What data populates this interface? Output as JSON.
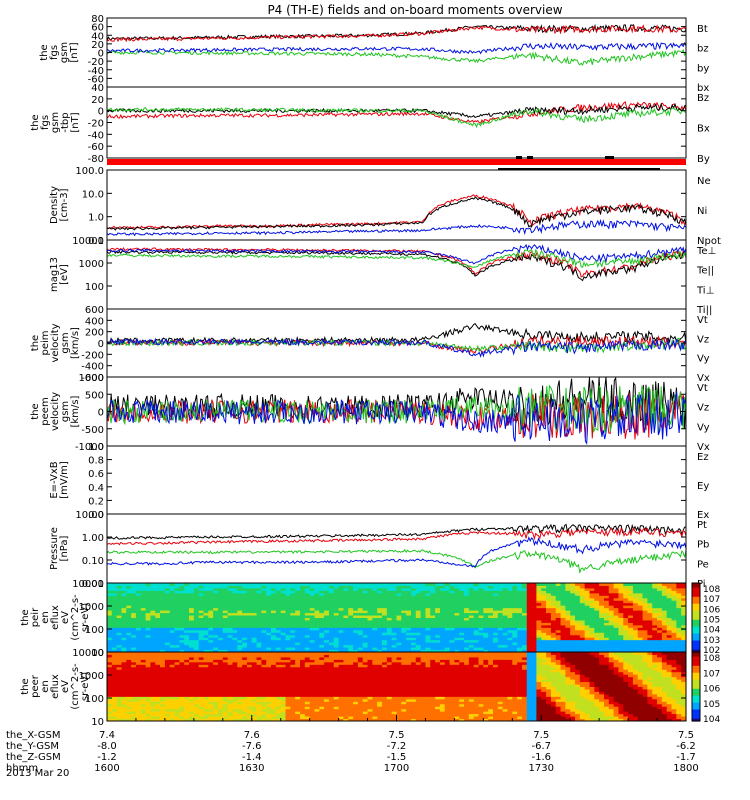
{
  "title": "P4 (TH-E) fields and on-board moments overview",
  "date": "2013 Mar 20",
  "colors": {
    "black": "#000000",
    "red": "#e8000b",
    "green": "#21c421",
    "blue": "#0010e0",
    "bar": "#ff0000"
  },
  "chart_data": [
    {
      "type": "line",
      "ylabel": [
        "the",
        "fgs",
        "gsm",
        "[nT]"
      ],
      "ylim": [
        -80,
        80
      ],
      "ylog": false,
      "yticks": [
        "80",
        "60",
        "40",
        "20",
        "0",
        "-20",
        "-40",
        "-60"
      ],
      "series": [
        {
          "name": "Bt",
          "color": "black",
          "base": [
            32,
            33,
            35,
            37,
            38,
            40,
            45,
            60,
            55,
            55,
            57,
            55
          ],
          "segments": [
            [
              0,
              0,
              0.62,
              30,
              32
            ],
            [
              0.62,
              0.7,
              35,
              60
            ],
            [
              0.7,
              0.85,
              50,
              58
            ],
            [
              0.85,
              1,
              56,
              50
            ]
          ]
        },
        {
          "name": "bz",
          "color": "red",
          "base": [
            30,
            31,
            33,
            35,
            37,
            39,
            44,
            58,
            52,
            54,
            56,
            52
          ]
        },
        {
          "name": "by",
          "color": "green",
          "base": [
            0,
            0,
            -1,
            -2,
            -3,
            -4,
            -10,
            -20,
            -5,
            -25,
            -10,
            0
          ]
        },
        {
          "name": "bx",
          "color": "blue",
          "base": [
            4,
            5,
            6,
            7,
            8,
            9,
            8,
            0,
            15,
            12,
            14,
            15
          ]
        }
      ]
    },
    {
      "type": "line",
      "ylabel": [
        "the",
        "fgs",
        "gsm",
        "-tbp",
        "[nT]"
      ],
      "ylim": [
        -80,
        40
      ],
      "ylog": false,
      "yticks": [
        "40",
        "20",
        "0",
        "-20",
        "-40",
        "-60",
        "-80"
      ],
      "series": [
        {
          "name": "Bz",
          "color": "red",
          "base": [
            -10,
            -9,
            -8,
            -8,
            -7,
            -6,
            -5,
            -20,
            -5,
            5,
            10,
            5
          ]
        },
        {
          "name": "Bx",
          "color": "black",
          "base": [
            0,
            0,
            0,
            0,
            0,
            0,
            0,
            -10,
            0,
            0,
            5,
            5
          ]
        },
        {
          "name": "By",
          "color": "green",
          "base": [
            2,
            2,
            2,
            1,
            1,
            0,
            0,
            -25,
            0,
            -15,
            -5,
            0
          ]
        }
      ]
    },
    {
      "type": "line",
      "ylabel": [
        "Density",
        "[cm-3]"
      ],
      "ylim": [
        0.1,
        100
      ],
      "ylog": true,
      "yticks": [
        "100.0",
        "10.0",
        "1.0",
        "0.1"
      ],
      "series": [
        {
          "name": "Ne",
          "color": "red",
          "base": [
            0.35,
            0.35,
            0.4,
            0.4,
            0.45,
            0.5,
            0.6,
            8,
            0.5,
            2,
            3,
            0.6
          ]
        },
        {
          "name": "Ni",
          "color": "black",
          "base": [
            0.3,
            0.32,
            0.35,
            0.38,
            0.4,
            0.45,
            0.55,
            6,
            0.45,
            1.6,
            2.5,
            0.55
          ]
        },
        {
          "name": "Npot",
          "color": "blue",
          "base": [
            0.18,
            0.18,
            0.2,
            0.2,
            0.22,
            0.24,
            0.26,
            0.4,
            0.3,
            0.5,
            0.5,
            0.3
          ]
        }
      ]
    },
    {
      "type": "line",
      "ylabel": [
        "mag13",
        "[eV]"
      ],
      "ylim": [
        10,
        10000
      ],
      "ylog": true,
      "yticks": [
        "10000",
        "1000",
        "100"
      ],
      "series": [
        {
          "name": "Te⊥",
          "color": "red",
          "base": [
            4000,
            4000,
            3800,
            3800,
            3600,
            3500,
            3200,
            300,
            2500,
            300,
            700,
            2800
          ]
        },
        {
          "name": "Te||",
          "color": "black",
          "base": [
            3000,
            3000,
            2900,
            2800,
            2800,
            2600,
            2400,
            250,
            1800,
            250,
            600,
            2200
          ]
        },
        {
          "name": "Ti⊥",
          "color": "blue",
          "base": [
            3500,
            3500,
            3400,
            3300,
            3200,
            3100,
            3000,
            900,
            5000,
            1500,
            2000,
            4000
          ]
        },
        {
          "name": "Ti||",
          "color": "green",
          "base": [
            2200,
            2100,
            2000,
            2000,
            1900,
            1800,
            1700,
            600,
            3000,
            900,
            1200,
            2500
          ]
        }
      ]
    },
    {
      "type": "line",
      "ylabel": [
        "the",
        "peim",
        "velocity",
        "gsm",
        "[km/s]"
      ],
      "ylim": [
        -600,
        600
      ],
      "ylog": false,
      "yticks": [
        "600",
        "400",
        "200",
        "0",
        "-200",
        "-400",
        "-600"
      ],
      "series": [
        {
          "name": "Vt",
          "color": "black",
          "base": [
            40,
            40,
            45,
            45,
            50,
            50,
            55,
            300,
            150,
            100,
            120,
            80
          ]
        },
        {
          "name": "Vz",
          "color": "red",
          "base": [
            10,
            10,
            5,
            5,
            0,
            0,
            -5,
            -150,
            20,
            30,
            20,
            10
          ]
        },
        {
          "name": "Vy",
          "color": "green",
          "base": [
            0,
            0,
            0,
            5,
            5,
            5,
            0,
            -100,
            -50,
            -80,
            -40,
            -10
          ]
        },
        {
          "name": "Vx",
          "color": "blue",
          "base": [
            20,
            20,
            20,
            15,
            15,
            10,
            10,
            -200,
            -60,
            -90,
            -50,
            -20
          ]
        }
      ]
    },
    {
      "type": "line",
      "ylabel": [
        "the",
        "peem",
        "velocity",
        "gsm",
        "[km/s]"
      ],
      "ylim": [
        -1000,
        1000
      ],
      "ylog": false,
      "yticks": [
        "1000",
        "500",
        "0",
        "-500",
        "-1000"
      ],
      "series": [
        {
          "name": "Vt",
          "color": "black",
          "base": [
            150,
            150,
            150,
            150,
            150,
            150,
            150,
            400,
            200,
            350,
            300,
            200
          ]
        },
        {
          "name": "Vz",
          "color": "red",
          "base": [
            0,
            0,
            0,
            0,
            0,
            0,
            0,
            -200,
            -100,
            -200,
            -150,
            -50
          ]
        },
        {
          "name": "Vy",
          "color": "green",
          "base": [
            0,
            0,
            0,
            0,
            0,
            0,
            0,
            100,
            50,
            50,
            50,
            20
          ]
        },
        {
          "name": "Vx",
          "color": "blue",
          "base": [
            -20,
            -20,
            -20,
            -20,
            -20,
            -20,
            -20,
            -300,
            -200,
            -250,
            -200,
            -50
          ]
        }
      ]
    },
    {
      "type": "line",
      "ylabel": [
        "E=-VxB",
        "[mV/m]"
      ],
      "ylim": [
        0,
        1
      ],
      "ylog": false,
      "yticks": [
        "1.0",
        "0.8",
        "0.6",
        "0.4",
        "0.2",
        "0.0"
      ],
      "series": [
        {
          "name": "Ez",
          "color": "red",
          "base": []
        },
        {
          "name": "Ey",
          "color": "green",
          "base": []
        },
        {
          "name": "Ex",
          "color": "blue",
          "base": []
        }
      ]
    },
    {
      "type": "line",
      "ylabel": [
        "Pressure",
        "[nPa]"
      ],
      "ylim": [
        0.01,
        10
      ],
      "ylog": true,
      "yticks": [
        "10.00",
        "1.00",
        "0.10",
        "0.01"
      ],
      "series": [
        {
          "name": "Pt",
          "color": "black",
          "base": [
            0.9,
            0.95,
            1.0,
            1.05,
            1.1,
            1.2,
            1.3,
            2.2,
            2.4,
            2.6,
            2.4,
            2.0
          ]
        },
        {
          "name": "Pb",
          "color": "red",
          "base": [
            0.5,
            0.55,
            0.6,
            0.65,
            0.7,
            0.75,
            0.85,
            1.6,
            1.3,
            1.7,
            1.8,
            1.5
          ]
        },
        {
          "name": "Pe",
          "color": "green",
          "base": [
            0.22,
            0.22,
            0.22,
            0.22,
            0.23,
            0.24,
            0.25,
            0.05,
            0.2,
            0.04,
            0.1,
            0.2
          ]
        },
        {
          "name": "Pi",
          "color": "blue",
          "base": [
            0.07,
            0.07,
            0.08,
            0.08,
            0.08,
            0.09,
            0.1,
            0.05,
            0.7,
            0.3,
            0.6,
            0.5
          ]
        }
      ]
    },
    {
      "type": "heatmap",
      "ylabel": [
        "the",
        "peir",
        "en",
        "eflux",
        "eV",
        "(cm^2-s-",
        "sr-eV)"
      ],
      "ylim": [
        10,
        10000
      ],
      "ylog": true,
      "yticks": [
        "10000",
        "1000",
        "100",
        "10"
      ],
      "colorbar": [
        "10^8",
        "10^7",
        "10^6",
        "10^5",
        "10^4",
        "10^3",
        "10^2"
      ]
    },
    {
      "type": "heatmap",
      "ylabel": [
        "the",
        "peer",
        "en",
        "eflux",
        "eV",
        "(cm^2-s-",
        "sr-eV)"
      ],
      "ylim": [
        10,
        10000
      ],
      "ylog": true,
      "yticks": [
        "10000",
        "1000",
        "100",
        "10"
      ],
      "colorbar": [
        "10^8",
        "10^7",
        "10^6",
        "10^5",
        "10^4"
      ]
    }
  ],
  "xaxis": {
    "labels": [
      "the_X-GSM",
      "the_Y-GSM",
      "the_Z-GSM",
      "hhmm"
    ],
    "columns": [
      [
        "7.4",
        "-8.0",
        "-1.2",
        "1600"
      ],
      [
        "7.6",
        "-7.6",
        "-1.4",
        "1630"
      ],
      [
        "7.5",
        "-7.2",
        "-1.5",
        "1700"
      ],
      [
        "7.5",
        "-6.7",
        "-1.6",
        "1730"
      ],
      [
        "7.5",
        "-6.2",
        "-1.7",
        "1800"
      ]
    ]
  }
}
